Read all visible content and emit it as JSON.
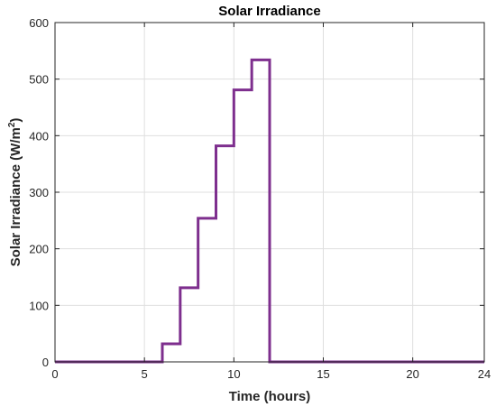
{
  "chart_data": {
    "type": "line",
    "title": "Solar Irradiance",
    "xlabel": "Time (hours)",
    "ylabel_main": "Solar Irradiance (W/m",
    "ylabel_sup": "2",
    "ylabel_close": ")",
    "xlim": [
      0,
      24
    ],
    "ylim": [
      0,
      600
    ],
    "xticks": [
      0,
      5,
      10,
      15,
      20,
      24
    ],
    "yticks": [
      0,
      100,
      200,
      300,
      400,
      500,
      600
    ],
    "grid": true,
    "step": "post",
    "series": [
      {
        "color": "#7E2F8E",
        "x": [
          0,
          6,
          7,
          8,
          9,
          10,
          11,
          12,
          24
        ],
        "y": [
          0,
          32,
          131,
          254,
          382,
          481,
          534,
          0,
          0
        ]
      }
    ]
  }
}
